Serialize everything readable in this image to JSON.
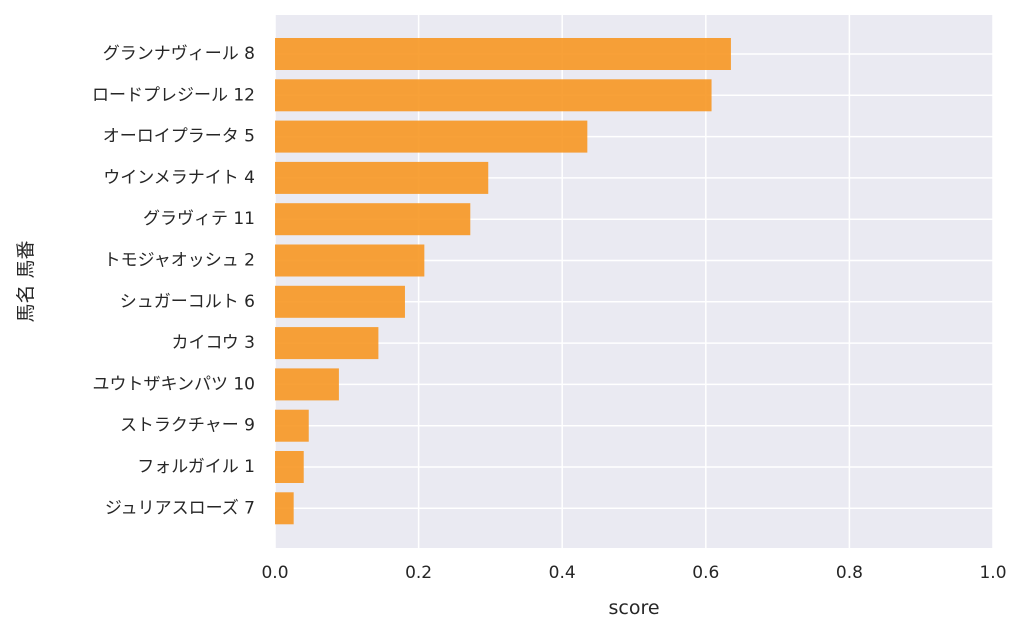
{
  "chart_data": {
    "type": "bar",
    "orientation": "horizontal",
    "categories": [
      "グランナヴィール 8",
      "ロードプレジール 12",
      "オーロイプラータ 5",
      "ウインメラナイト 4",
      "グラヴィテ 11",
      "トモジャオッシュ 2",
      "シュガーコルト 6",
      "カイコウ 3",
      "ユウトザキンパツ 10",
      "ストラクチャー 9",
      "フォルガイル 1",
      "ジュリアスローズ 7"
    ],
    "values": [
      0.635,
      0.608,
      0.435,
      0.297,
      0.272,
      0.208,
      0.181,
      0.144,
      0.089,
      0.047,
      0.04,
      0.026
    ],
    "xlabel": "score",
    "ylabel": "馬名 馬番",
    "xlim": [
      0,
      1.0
    ],
    "xticks": [
      "0.0",
      "0.2",
      "0.4",
      "0.6",
      "0.8",
      "1.0"
    ],
    "grid": true,
    "bar_color": "#f7941d",
    "background_color": "#eaeaf2"
  }
}
